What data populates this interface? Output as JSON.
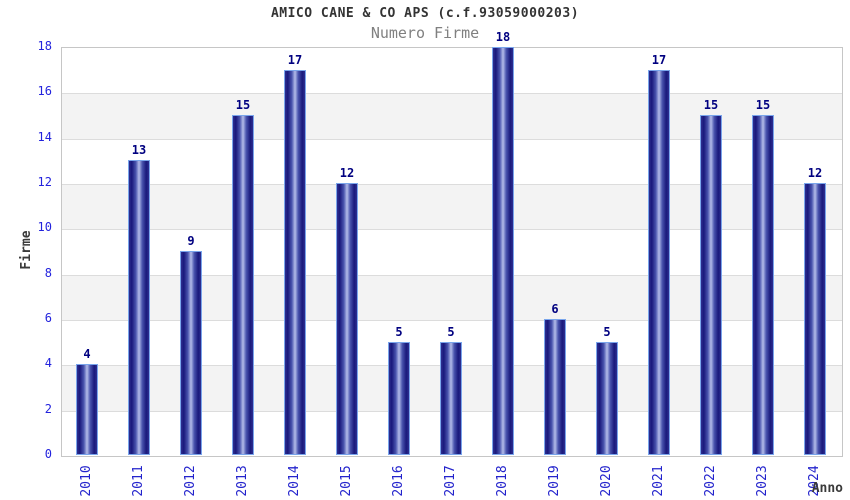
{
  "chart_data": {
    "type": "bar",
    "title": "AMICO CANE & CO APS (c.f.93059000203)",
    "subtitle": "Numero Firme",
    "xlabel": "Anno",
    "ylabel": "Firme",
    "categories": [
      "2010",
      "2011",
      "2012",
      "2013",
      "2014",
      "2015",
      "2016",
      "2017",
      "2018",
      "2019",
      "2020",
      "2021",
      "2022",
      "2023",
      "2024"
    ],
    "values": [
      4,
      13,
      9,
      15,
      17,
      12,
      5,
      5,
      18,
      6,
      5,
      17,
      15,
      15,
      12
    ],
    "ylim": [
      0,
      18
    ],
    "ytick_step": 2,
    "grid": "horizontal-only",
    "legend": "none",
    "colors": {
      "tick_label": "#2323dd",
      "category_label": "#2323cc",
      "value_label": "#000080",
      "bar_edge": "#19197c",
      "bar_center": "#b4bce9",
      "bar_border": "#79a5ec",
      "band_alt": "#f3f3f3",
      "gridline": "#dcdcdc",
      "plot_border": "#c6c6c6",
      "title": "#333333",
      "subtitle": "#808080",
      "axis_label": "#3a3a3a",
      "background": "#ffffff"
    }
  }
}
